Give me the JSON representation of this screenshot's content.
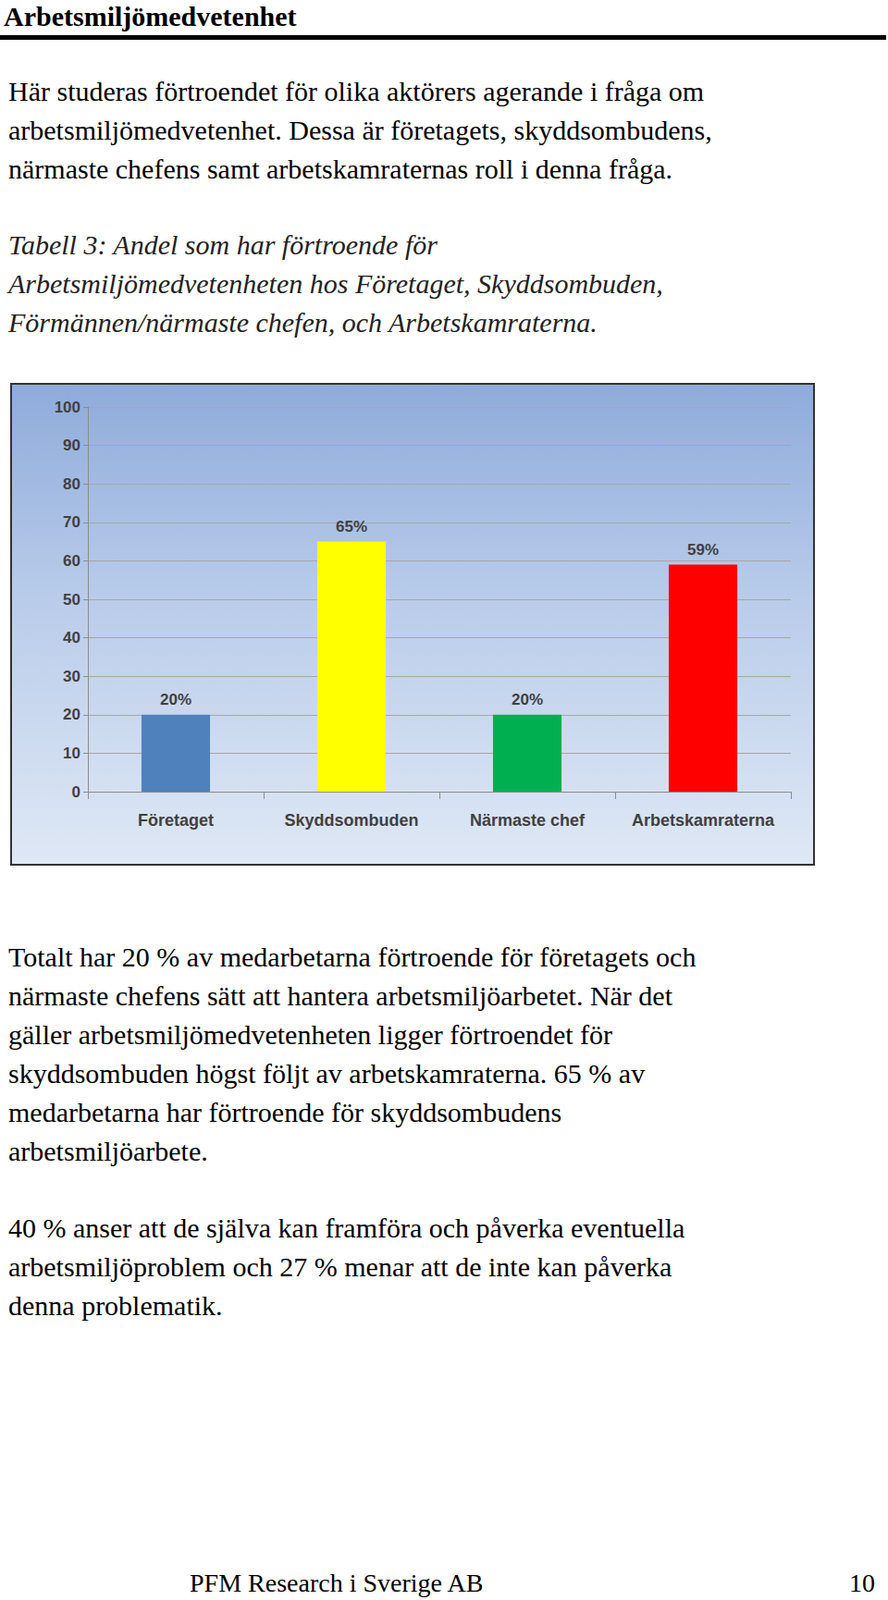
{
  "header": {
    "title": "Arbetsmiljömedvetenhet"
  },
  "intro": {
    "lines": [
      "Här studeras förtroendet för olika aktörers agerande i fråga om",
      "arbetsmiljömedvetenhet. Dessa är företagets, skyddsombudens,",
      "närmaste chefens samt arbetskamraternas roll i denna fråga."
    ]
  },
  "caption": {
    "lines": [
      "Tabell 3: Andel som har förtroende för",
      "Arbetsmiljömedvetenheten hos Företaget, Skyddsombuden,",
      "Förmännen/närmaste chefen, och Arbetskamraterna."
    ]
  },
  "chart_data": {
    "type": "bar",
    "categories": [
      "Företaget",
      "Skyddsombuden",
      "Närmaste chef",
      "Arbetskamraterna"
    ],
    "values": [
      20,
      65,
      20,
      59
    ],
    "value_labels": [
      "20%",
      "65%",
      "20%",
      "59%"
    ],
    "colors": [
      "#4F81BD",
      "#FFFF00",
      "#00B050",
      "#FF0000"
    ],
    "ylim": [
      0,
      100
    ],
    "yticks": [
      0,
      10,
      20,
      30,
      40,
      50,
      60,
      70,
      80,
      90,
      100
    ],
    "grid": true,
    "data_labels": true
  },
  "body": [
    {
      "lines": [
        "Totalt har 20 % av medarbetarna förtroende för företagets och",
        "närmaste chefens sätt att hantera arbetsmiljöarbetet. När det",
        "gäller arbetsmiljömedvetenheten ligger förtroendet för",
        "skyddsombuden högst följt av arbetskamraterna.  65 % av",
        "medarbetarna har förtroende för skyddsombudens",
        "arbetsmiljöarbete."
      ]
    },
    {
      "lines": [
        "40 % anser att de själva kan framföra och påverka eventuella",
        "arbetsmiljöproblem och 27 % menar att de inte kan påverka",
        "denna problematik."
      ]
    }
  ],
  "footer": {
    "text": "PFM Research i Sverige AB",
    "page": 10
  }
}
